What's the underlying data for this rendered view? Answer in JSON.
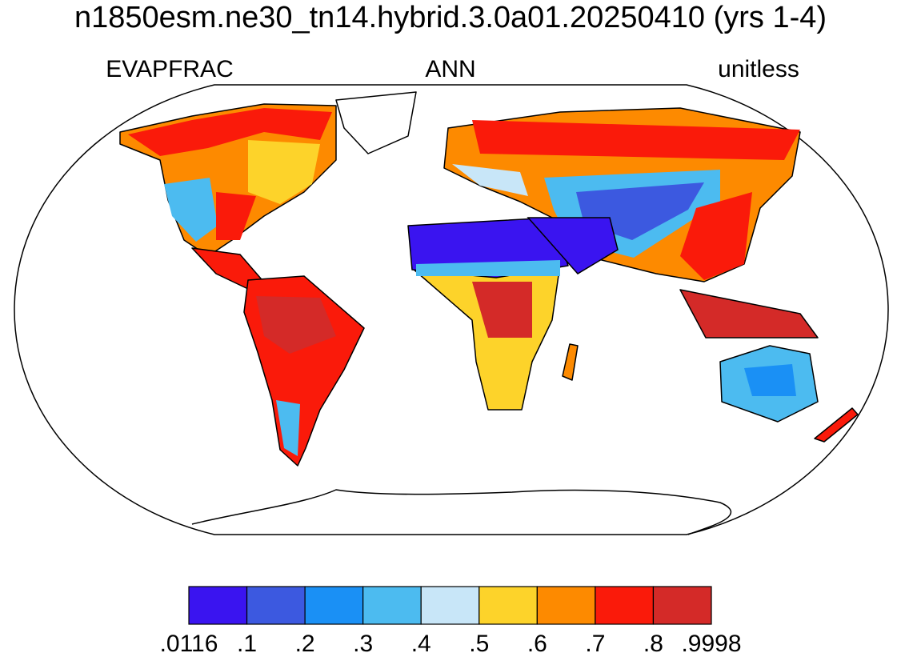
{
  "title": "n1850esm.ne30_tn14.hybrid.3.0a01.20250410 (yrs 1-4)",
  "left_label": "EVAPFRAC",
  "center_label": "ANN",
  "right_label": "unitless",
  "colorbar": {
    "colors": [
      "#3a14f0",
      "#3c59e0",
      "#1a90f5",
      "#4cbbf0",
      "#c8e6f8",
      "#fdd32a",
      "#fd8a00",
      "#fa1a0a",
      "#d42a28"
    ],
    "levels": [
      {
        "value": 0.0116,
        "label": ".0116"
      },
      {
        "value": 0.1,
        "label": ".1"
      },
      {
        "value": 0.2,
        "label": ".2"
      },
      {
        "value": 0.3,
        "label": ".3"
      },
      {
        "value": 0.4,
        "label": ".4"
      },
      {
        "value": 0.5,
        "label": ".5"
      },
      {
        "value": 0.6,
        "label": ".6"
      },
      {
        "value": 0.7,
        "label": ".7"
      },
      {
        "value": 0.8,
        "label": ".8"
      },
      {
        "value": 0.9998,
        "label": ".9998"
      }
    ]
  }
}
